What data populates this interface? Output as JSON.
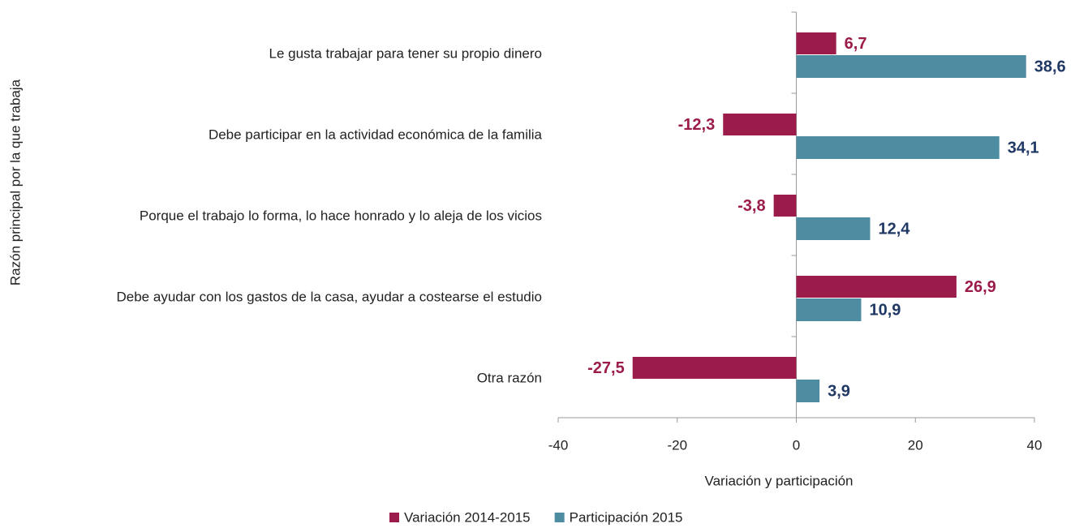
{
  "chart_data": {
    "type": "bar",
    "orientation": "horizontal",
    "x_label": "Variación y participación",
    "y_label": "Razón principal por la que trabaja",
    "categories": [
      "Le gusta trabajar para tener su propio dinero",
      "Debe participar en la actividad económica de la familia",
      "Porque el trabajo lo forma, lo hace honrado y lo aleja de los vicios",
      "Debe ayudar con los gastos de la casa, ayudar a costearse el estudio",
      "Otra razón"
    ],
    "series": [
      {
        "name": "Variación 2014-2015",
        "color": "#9b1b4b",
        "label_color": "#9b1b4b",
        "values": [
          6.7,
          -12.3,
          -3.8,
          26.9,
          -27.5
        ],
        "value_labels": [
          "6,7",
          "-12,3",
          "-3,8",
          "26,9",
          "-27,5"
        ]
      },
      {
        "name": "Participación 2015",
        "color": "#4e8ca2",
        "label_color": "#1f3864",
        "values": [
          38.6,
          34.1,
          12.4,
          10.9,
          3.9
        ],
        "value_labels": [
          "38,6",
          "34,1",
          "12,4",
          "10,9",
          "3,9"
        ]
      }
    ],
    "xlim": [
      -40,
      40
    ],
    "xticks": [
      -40,
      -20,
      0,
      20,
      40
    ],
    "legend": "bottom"
  }
}
